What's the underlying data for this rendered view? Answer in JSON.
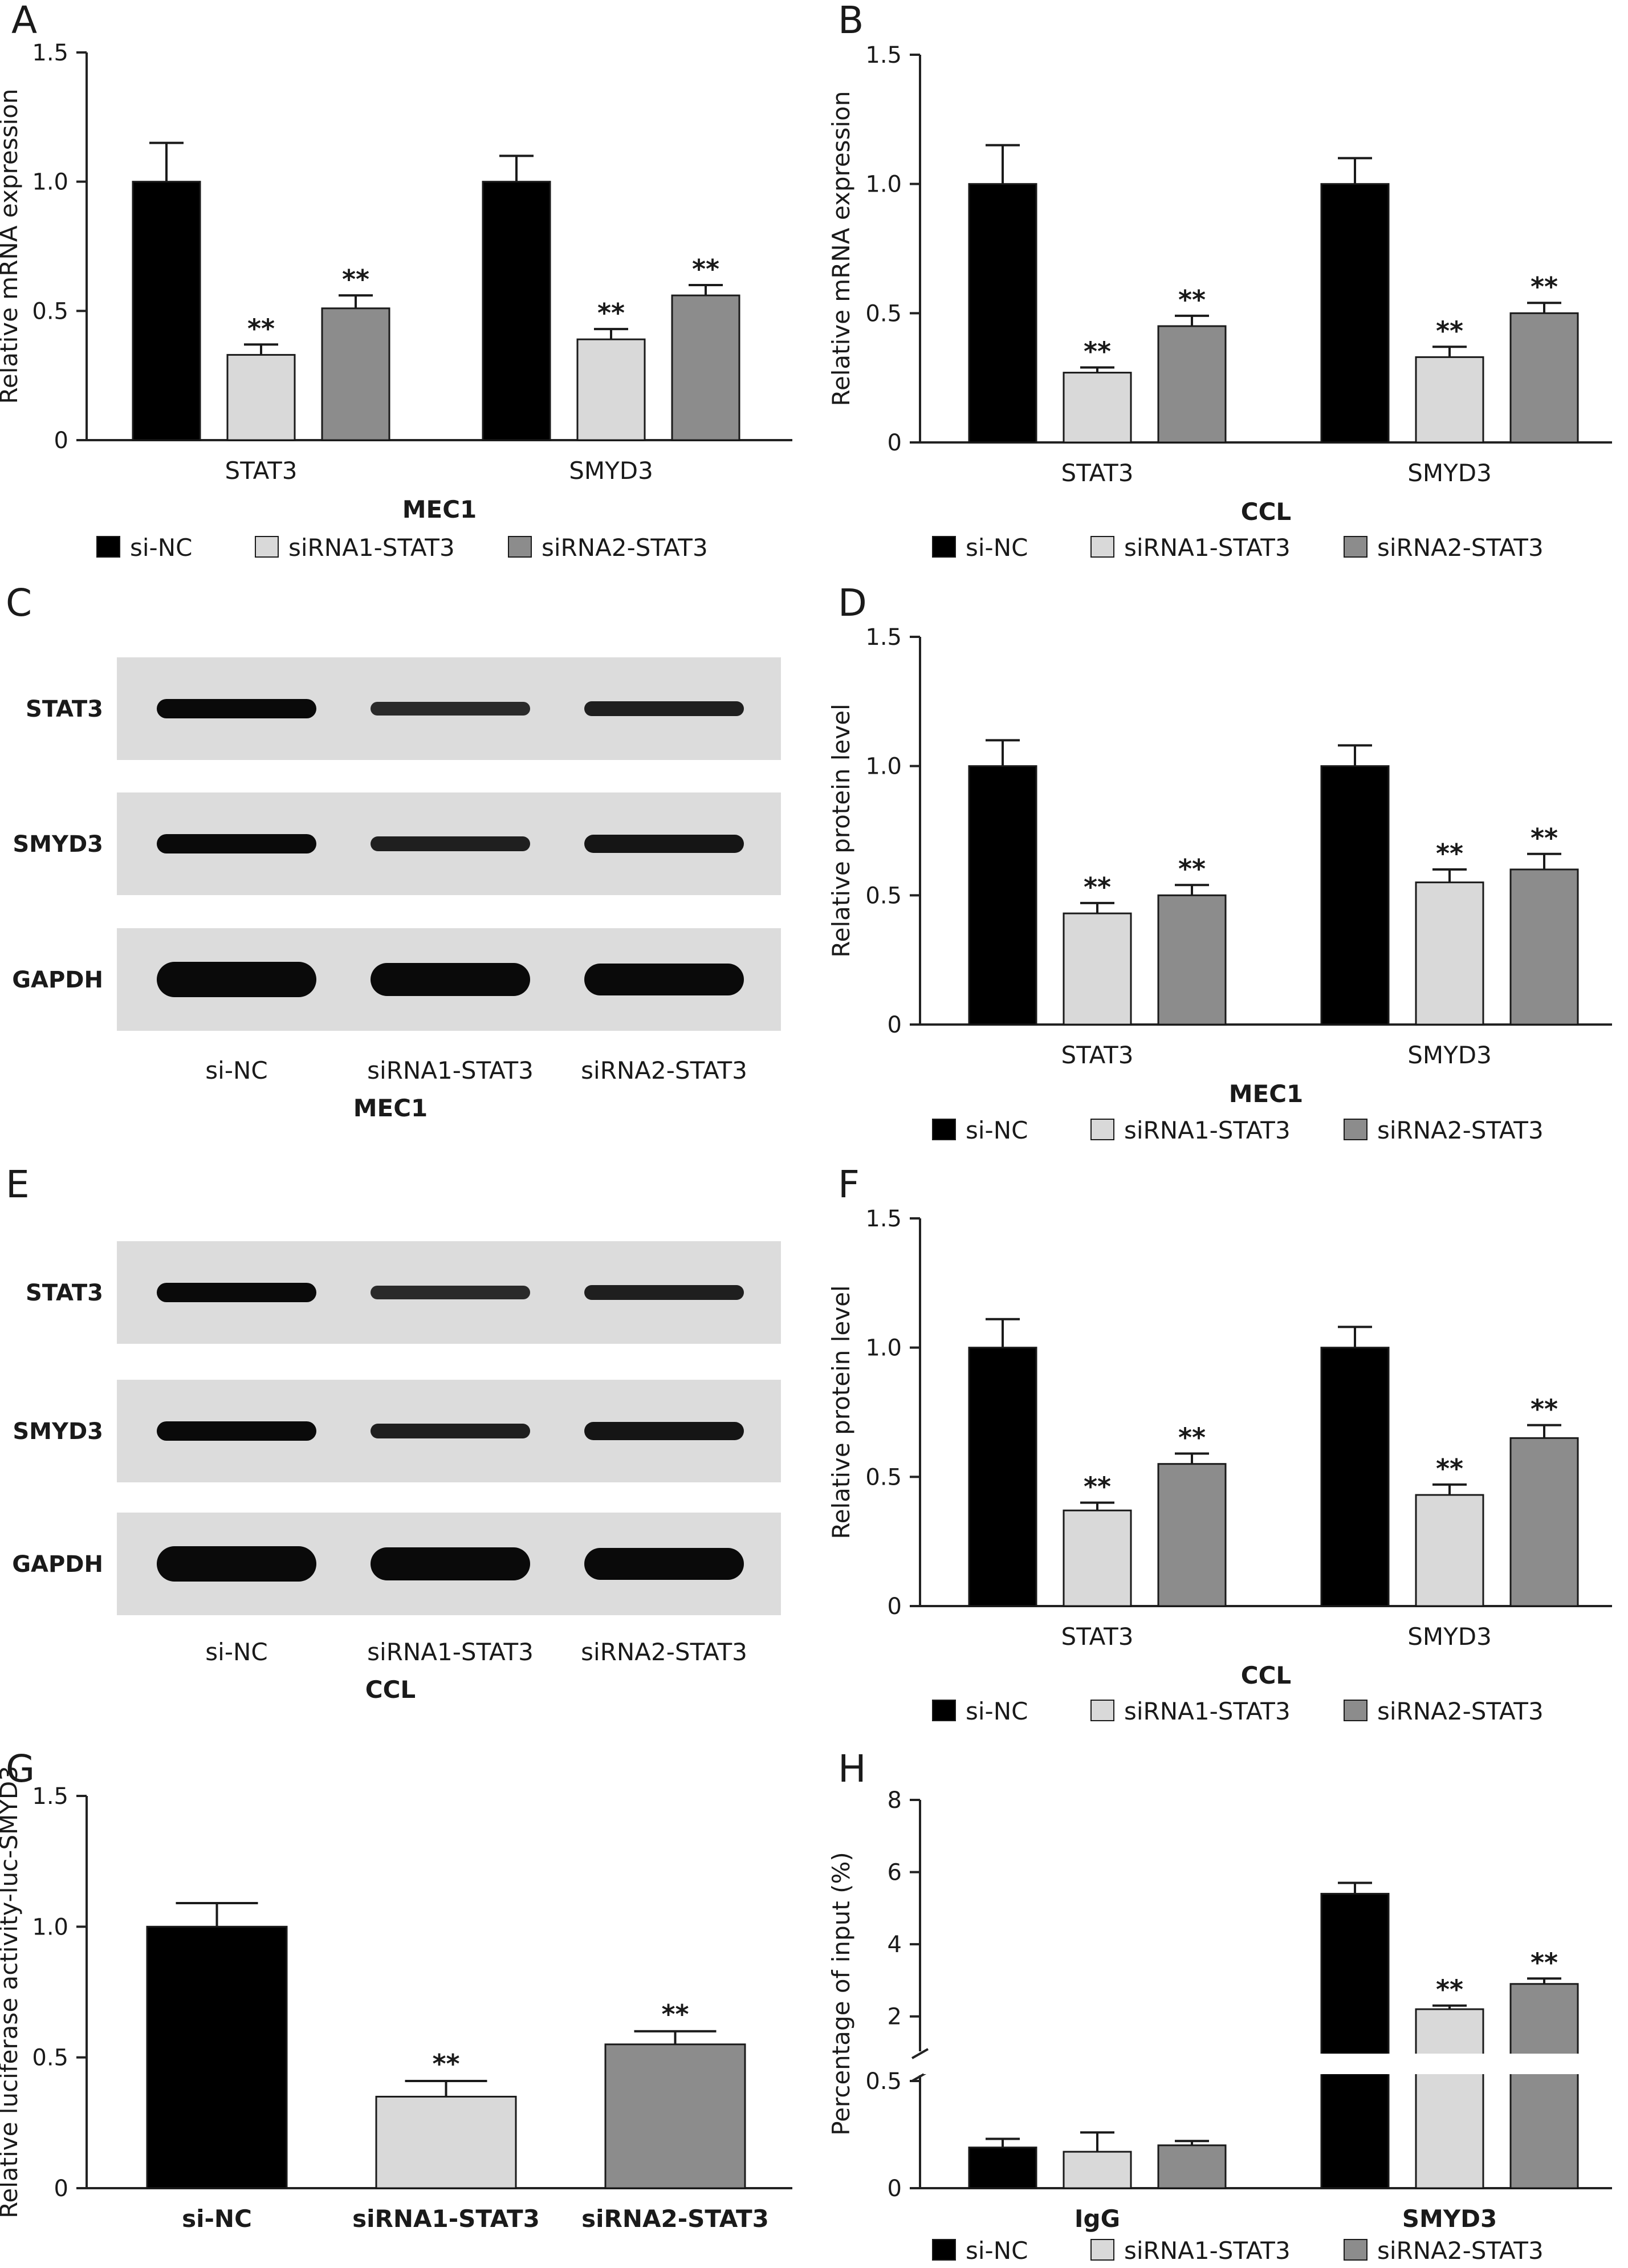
{
  "colors": {
    "si_nc": "#000000",
    "sirna1": "#d9d9d9",
    "sirna2": "#8c8c8c",
    "axis": "#222222",
    "blot_bg": "#dcdcdc",
    "band": "#0a0a0a"
  },
  "legend": [
    "si-NC",
    "siRNA1-STAT3",
    "siRNA2-STAT3"
  ],
  "significance_marker": "**",
  "chart_data": [
    {
      "panel": "A",
      "type": "bar",
      "categories": [
        "STAT3",
        "SMYD3"
      ],
      "xlabel": "MEC1",
      "ylabel": "Relative mRNA expression",
      "ylim": [
        0,
        1.5
      ],
      "yticks": [
        "0",
        "0.5",
        "1.0",
        "1.5"
      ],
      "series": [
        {
          "name": "si-NC",
          "values": [
            1.0,
            1.0
          ],
          "errors": [
            0.15,
            0.1
          ],
          "sig": [
            "",
            ""
          ]
        },
        {
          "name": "siRNA1-STAT3",
          "values": [
            0.33,
            0.39
          ],
          "errors": [
            0.04,
            0.04
          ],
          "sig": [
            "**",
            "**"
          ]
        },
        {
          "name": "siRNA2-STAT3",
          "values": [
            0.51,
            0.56
          ],
          "errors": [
            0.05,
            0.04
          ],
          "sig": [
            "**",
            "**"
          ]
        }
      ]
    },
    {
      "panel": "B",
      "type": "bar",
      "categories": [
        "STAT3",
        "SMYD3"
      ],
      "xlabel": "CCL",
      "ylabel": "Relative mRNA expression",
      "ylim": [
        0,
        1.5
      ],
      "yticks": [
        "0",
        "0.5",
        "1.0",
        "1.5"
      ],
      "series": [
        {
          "name": "si-NC",
          "values": [
            1.0,
            1.0
          ],
          "errors": [
            0.15,
            0.1
          ],
          "sig": [
            "",
            ""
          ]
        },
        {
          "name": "siRNA1-STAT3",
          "values": [
            0.27,
            0.33
          ],
          "errors": [
            0.02,
            0.04
          ],
          "sig": [
            "**",
            "**"
          ]
        },
        {
          "name": "siRNA2-STAT3",
          "values": [
            0.45,
            0.5
          ],
          "errors": [
            0.04,
            0.04
          ],
          "sig": [
            "**",
            "**"
          ]
        }
      ]
    },
    {
      "panel": "D",
      "type": "bar",
      "categories": [
        "STAT3",
        "SMYD3"
      ],
      "xlabel": "MEC1",
      "ylabel": "Relative protein level",
      "ylim": [
        0,
        1.5
      ],
      "yticks": [
        "0",
        "0.5",
        "1.0",
        "1.5"
      ],
      "series": [
        {
          "name": "si-NC",
          "values": [
            1.0,
            1.0
          ],
          "errors": [
            0.1,
            0.08
          ],
          "sig": [
            "",
            ""
          ]
        },
        {
          "name": "siRNA1-STAT3",
          "values": [
            0.43,
            0.55
          ],
          "errors": [
            0.04,
            0.05
          ],
          "sig": [
            "**",
            "**"
          ]
        },
        {
          "name": "siRNA2-STAT3",
          "values": [
            0.5,
            0.6
          ],
          "errors": [
            0.04,
            0.06
          ],
          "sig": [
            "**",
            "**"
          ]
        }
      ]
    },
    {
      "panel": "F",
      "type": "bar",
      "categories": [
        "STAT3",
        "SMYD3"
      ],
      "xlabel": "CCL",
      "ylabel": "Relative protein level",
      "ylim": [
        0,
        1.5
      ],
      "yticks": [
        "0",
        "0.5",
        "1.0",
        "1.5"
      ],
      "series": [
        {
          "name": "si-NC",
          "values": [
            1.0,
            1.0
          ],
          "errors": [
            0.11,
            0.08
          ],
          "sig": [
            "",
            ""
          ]
        },
        {
          "name": "siRNA1-STAT3",
          "values": [
            0.37,
            0.43
          ],
          "errors": [
            0.03,
            0.04
          ],
          "sig": [
            "**",
            "**"
          ]
        },
        {
          "name": "siRNA2-STAT3",
          "values": [
            0.55,
            0.65
          ],
          "errors": [
            0.04,
            0.05
          ],
          "sig": [
            "**",
            "**"
          ]
        }
      ]
    },
    {
      "panel": "G",
      "type": "bar",
      "categories": [
        "si-NC",
        "siRNA1-STAT3",
        "siRNA2-STAT3"
      ],
      "xlabel": "",
      "ylabel": "Relative luciferase activity-luc-SMYD3",
      "ylim": [
        0,
        1.5
      ],
      "yticks": [
        "0",
        "0.5",
        "1.0",
        "1.5"
      ],
      "values": [
        1.0,
        0.35,
        0.55
      ],
      "errors": [
        0.09,
        0.06,
        0.05
      ],
      "sig": [
        "",
        "**",
        "**"
      ]
    },
    {
      "panel": "H",
      "type": "bar",
      "broken_axis": true,
      "categories": [
        "IgG",
        "SMYD3"
      ],
      "xlabel": "",
      "ylabel": "Percentage of input (%)",
      "yticks_lower": [
        "0",
        "0.5"
      ],
      "yticks_upper": [
        "2",
        "4",
        "6",
        "8"
      ],
      "series": [
        {
          "name": "si-NC",
          "values": [
            0.19,
            5.4
          ],
          "errors": [
            0.04,
            0.3
          ],
          "sig": [
            "",
            ""
          ]
        },
        {
          "name": "siRNA1-STAT3",
          "values": [
            0.17,
            2.2
          ],
          "errors": [
            0.09,
            0.1
          ],
          "sig": [
            "",
            "**"
          ]
        },
        {
          "name": "siRNA2-STAT3",
          "values": [
            0.2,
            2.9
          ],
          "errors": [
            0.02,
            0.15
          ],
          "sig": [
            "",
            "**"
          ]
        }
      ]
    }
  ],
  "blots": [
    {
      "panel": "C",
      "rows": [
        "STAT3",
        "SMYD3",
        "GAPDH"
      ],
      "lanes": [
        "si-NC",
        "siRNA1-STAT3",
        "siRNA2-STAT3"
      ],
      "caption": "MEC1"
    },
    {
      "panel": "E",
      "rows": [
        "STAT3",
        "SMYD3",
        "GAPDH"
      ],
      "lanes": [
        "si-NC",
        "siRNA1-STAT3",
        "siRNA2-STAT3"
      ],
      "caption": "CCL"
    }
  ]
}
